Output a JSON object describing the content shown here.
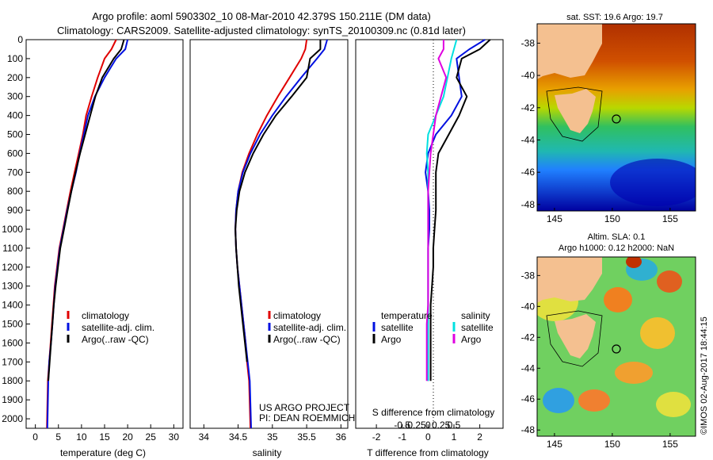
{
  "header": {
    "title_line1": "Argo profile: aoml 5903302_10 08-Mar-2010 42.379S 150.211E (DM data)",
    "title_line2": "Climatology: CARS2009. Satellite-adjusted climatology: synTS_20100309.nc (0.81d later)"
  },
  "colors": {
    "climatology": "#e00000",
    "satellite": "#0010e0",
    "argo": "#000000",
    "sat_temp": "#0010e0",
    "sat_sal": "#00e0e0",
    "argo_sal": "#e000e0"
  },
  "chart_data": [
    {
      "type": "line",
      "name": "temperature",
      "xlabel": "temperature (deg C)",
      "ylabel": "",
      "xlim": [
        -2,
        32
      ],
      "ylim": [
        0,
        2050
      ],
      "y_reversed": true,
      "xticks": [
        "0",
        "5",
        "10",
        "15",
        "20",
        "25",
        "30"
      ],
      "yticks": [
        "0",
        "100",
        "200",
        "300",
        "400",
        "500",
        "600",
        "700",
        "800",
        "900",
        "1000",
        "1100",
        "1200",
        "1300",
        "1400",
        "1500",
        "1600",
        "1700",
        "1800",
        "1900",
        "2000"
      ],
      "legend": [
        "climatology",
        "satellite-adj. clim.",
        "Argo(..raw -QC)"
      ],
      "series": [
        {
          "name": "climatology",
          "color": "#e00000",
          "x": [
            17.5,
            16.5,
            15.0,
            13.5,
            12.2,
            11.0,
            10.3,
            9.4,
            8.5,
            7.6,
            6.8,
            6.0,
            5.2,
            4.7,
            4.2,
            3.9,
            3.6,
            3.3,
            3.0,
            2.7,
            2.5
          ],
          "y": [
            0,
            50,
            100,
            200,
            300,
            400,
            500,
            600,
            700,
            800,
            900,
            1000,
            1100,
            1200,
            1300,
            1400,
            1500,
            1600,
            1700,
            1800,
            2050
          ]
        },
        {
          "name": "satellite-adj. clim.",
          "color": "#0010e0",
          "x": [
            20.0,
            19.5,
            17.5,
            15.0,
            12.9,
            11.4,
            10.5,
            9.6,
            8.8,
            7.8,
            6.9,
            6.1,
            5.3,
            4.8,
            4.3,
            4.0,
            3.7,
            3.4,
            3.0,
            2.8,
            2.6
          ],
          "y": [
            0,
            50,
            100,
            200,
            300,
            400,
            500,
            600,
            700,
            800,
            900,
            1000,
            1100,
            1200,
            1300,
            1400,
            1500,
            1600,
            1700,
            1800,
            2050
          ]
        },
        {
          "name": "Argo(..raw -QC)",
          "color": "#000000",
          "x": [
            19.2,
            18.6,
            17.0,
            14.5,
            13.0,
            11.9,
            10.8,
            9.7,
            8.7,
            7.8,
            7.0,
            6.2,
            5.4,
            4.9,
            4.4,
            4.0,
            3.7,
            3.4,
            3.1,
            2.8
          ],
          "y": [
            0,
            50,
            100,
            200,
            300,
            400,
            500,
            600,
            700,
            800,
            900,
            1000,
            1100,
            1200,
            1300,
            1400,
            1500,
            1600,
            1700,
            1800
          ]
        }
      ]
    },
    {
      "type": "line",
      "name": "salinity",
      "xlabel": "salinity",
      "ylabel": "",
      "xlim": [
        33.8,
        36.1
      ],
      "ylim": [
        0,
        2050
      ],
      "y_reversed": true,
      "xticks": [
        "34",
        "34.5",
        "35",
        "35.5",
        "36"
      ],
      "legend": [
        "climatology",
        "satellite-adj. clim.",
        "Argo(..raw -QC)"
      ],
      "annotation": [
        "US ARGO PROJECT",
        "PI: DEAN ROEMMICH"
      ],
      "series": [
        {
          "name": "climatology",
          "color": "#e00000",
          "x": [
            35.5,
            35.48,
            35.42,
            35.25,
            35.08,
            34.92,
            34.78,
            34.66,
            34.56,
            34.5,
            34.47,
            34.46,
            34.47,
            34.49,
            34.52,
            34.55,
            34.58,
            34.61,
            34.63,
            34.66,
            34.68
          ],
          "y": [
            0,
            50,
            100,
            200,
            300,
            400,
            500,
            600,
            700,
            800,
            900,
            1000,
            1100,
            1200,
            1300,
            1400,
            1500,
            1600,
            1700,
            1800,
            2050
          ]
        },
        {
          "name": "satellite-adj. clim.",
          "color": "#0010e0",
          "x": [
            35.8,
            35.76,
            35.65,
            35.42,
            35.2,
            35.0,
            34.82,
            34.68,
            34.57,
            34.5,
            34.47,
            34.46,
            34.47,
            34.49,
            34.52,
            34.55,
            34.58,
            34.61,
            34.64,
            34.67,
            34.69
          ],
          "y": [
            0,
            50,
            100,
            200,
            300,
            400,
            500,
            600,
            700,
            800,
            900,
            1000,
            1100,
            1200,
            1300,
            1400,
            1500,
            1600,
            1700,
            1800,
            2050
          ]
        },
        {
          "name": "Argo(..raw -QC)",
          "color": "#000000",
          "x": [
            35.7,
            35.7,
            35.55,
            35.5,
            35.28,
            35.05,
            34.87,
            34.72,
            34.6,
            34.52,
            34.48,
            34.46,
            34.47,
            34.49,
            34.51,
            34.54,
            34.57,
            34.6,
            34.63
          ],
          "y": [
            0,
            50,
            100,
            200,
            300,
            400,
            500,
            600,
            700,
            800,
            900,
            1000,
            1100,
            1200,
            1300,
            1400,
            1500,
            1600,
            1700
          ]
        }
      ]
    },
    {
      "type": "line",
      "name": "difference",
      "xlabel": "T difference from climatology",
      "xlabel2": "S difference from climatology",
      "xlim": [
        -2.8,
        2.9
      ],
      "ylim": [
        0,
        2050
      ],
      "y_reversed": true,
      "xticks": [
        "-2",
        "-1",
        "0",
        "1",
        "2"
      ],
      "xticks2": [
        "-0.5",
        "-0.25",
        "0",
        "0.25",
        "0.5"
      ],
      "legend_temp": {
        "title": "temperature",
        "items": [
          "satellite",
          "Argo"
        ]
      },
      "legend_sal": {
        "title": "salinity",
        "items": [
          "satellite",
          "Argo"
        ]
      },
      "series": [
        {
          "name": "temperature satellite",
          "color": "#0010e0",
          "x": [
            2.2,
            1.6,
            1.1,
            1.2,
            1.3,
            0.9,
            0.3,
            0.0,
            -0.1,
            0.0,
            0.05,
            0.05,
            0.0,
            0.0,
            0.0,
            0.0,
            0.0,
            0.0,
            0.0,
            0.0
          ],
          "y": [
            0,
            50,
            100,
            200,
            300,
            400,
            500,
            600,
            700,
            800,
            900,
            1000,
            1100,
            1200,
            1300,
            1400,
            1500,
            1600,
            1700,
            1800
          ]
        },
        {
          "name": "temperature Argo",
          "color": "#000000",
          "x": [
            2.4,
            2.0,
            1.3,
            1.1,
            1.5,
            1.2,
            0.8,
            0.4,
            0.3,
            0.3,
            0.3,
            0.25,
            0.2,
            0.2,
            0.15,
            0.1,
            0.1,
            0.1,
            0.1,
            0.1
          ],
          "y": [
            0,
            50,
            100,
            200,
            300,
            400,
            500,
            600,
            700,
            800,
            900,
            1000,
            1100,
            1200,
            1300,
            1400,
            1500,
            1600,
            1700,
            1800
          ]
        },
        {
          "name": "salinity satellite",
          "color": "#00e0e0",
          "x": [
            1.1,
            1.0,
            0.9,
            0.75,
            0.6,
            0.3,
            0.0,
            -0.05,
            0.0,
            0.0,
            0.0,
            0.0,
            0.0,
            0.0,
            0.0,
            0.0,
            0.0,
            0.0,
            0.0,
            0.0
          ],
          "y": [
            0,
            50,
            100,
            200,
            300,
            400,
            500,
            600,
            700,
            800,
            900,
            1000,
            1100,
            1200,
            1300,
            1400,
            1500,
            1600,
            1700,
            1800
          ]
        },
        {
          "name": "salinity Argo",
          "color": "#e000e0",
          "x": [
            0.6,
            0.6,
            0.4,
            0.7,
            0.5,
            0.3,
            0.2,
            0.1,
            0.05,
            0.0,
            0.0,
            0.0,
            0.0,
            0.0,
            0.0,
            0.0,
            -0.05,
            -0.05,
            -0.05,
            -0.05
          ],
          "y": [
            0,
            50,
            100,
            200,
            300,
            400,
            500,
            600,
            700,
            800,
            900,
            1000,
            1100,
            1200,
            1300,
            1400,
            1500,
            1600,
            1700,
            1800
          ]
        }
      ]
    },
    {
      "type": "heatmap",
      "name": "sst-map",
      "title": "sat. SST: 19.6 Argo: 19.7",
      "xticks": [
        "145",
        "150",
        "155"
      ],
      "yticks": [
        "-38",
        "-40",
        "-42",
        "-44",
        "-46",
        "-48"
      ],
      "xlim": [
        143.5,
        157.2
      ],
      "ylim": [
        -48.4,
        -36.8
      ],
      "float_position": {
        "lon": 150.211,
        "lat": -42.379
      }
    },
    {
      "type": "heatmap",
      "name": "sla-map",
      "title_line1": "Altim. SLA: 0.1",
      "title_line2": "Argo h1000: 0.12 h2000: NaN",
      "xticks": [
        "145",
        "150",
        "155"
      ],
      "yticks": [
        "-38",
        "-40",
        "-42",
        "-44",
        "-46",
        "-48"
      ],
      "xlim": [
        143.5,
        157.2
      ],
      "ylim": [
        -48.4,
        -36.8
      ],
      "float_position": {
        "lon": 150.211,
        "lat": -42.379
      }
    }
  ],
  "footer": {
    "stamp": "©IMOS 02-Aug-2017 18:44:15"
  }
}
